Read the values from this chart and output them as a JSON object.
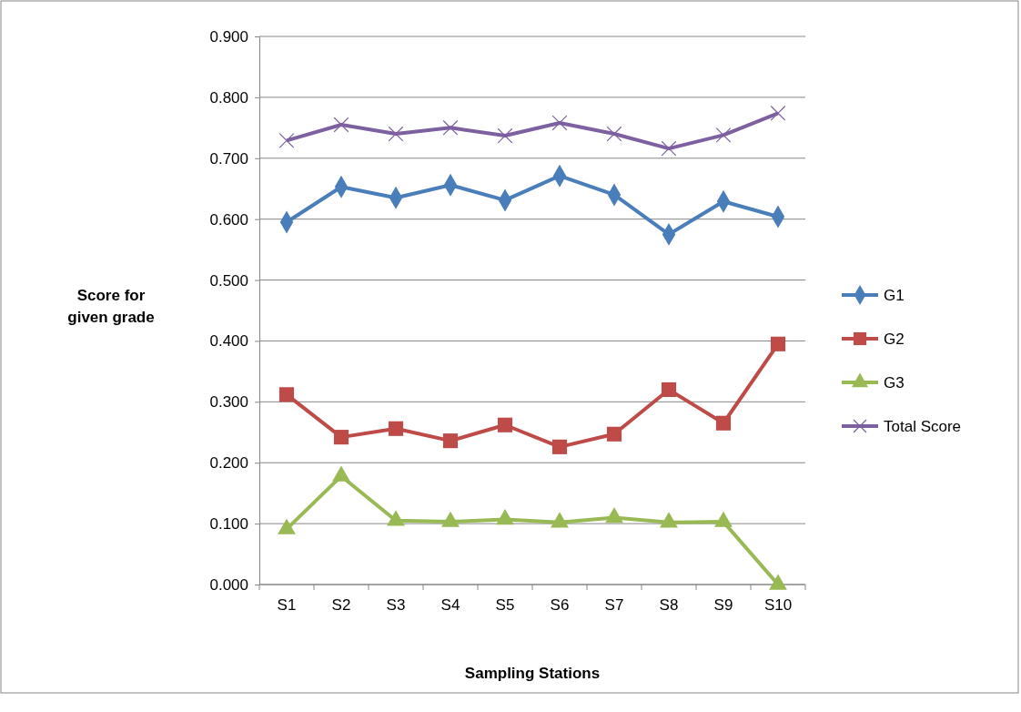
{
  "chart_data": {
    "type": "line",
    "xlabel": "Sampling Stations",
    "ylabel": "Score for given grade",
    "categories": [
      "S1",
      "S2",
      "S3",
      "S4",
      "S5",
      "S6",
      "S7",
      "S8",
      "S9",
      "S10"
    ],
    "series": [
      {
        "name": "G1",
        "color": "#4a7ebb",
        "marker": "diamond",
        "values": [
          0.595,
          0.653,
          0.635,
          0.656,
          0.631,
          0.671,
          0.64,
          0.575,
          0.629,
          0.604
        ]
      },
      {
        "name": "G2",
        "color": "#be4b48",
        "marker": "square",
        "values": [
          0.312,
          0.242,
          0.256,
          0.236,
          0.262,
          0.226,
          0.247,
          0.32,
          0.265,
          0.395
        ]
      },
      {
        "name": "G3",
        "color": "#98b954",
        "marker": "triangle",
        "values": [
          0.091,
          0.178,
          0.105,
          0.103,
          0.107,
          0.102,
          0.11,
          0.102,
          0.103,
          0.0
        ]
      },
      {
        "name": "Total Score",
        "color": "#7d60a0",
        "marker": "cross",
        "values": [
          0.729,
          0.755,
          0.74,
          0.75,
          0.737,
          0.758,
          0.74,
          0.716,
          0.738,
          0.774
        ]
      }
    ],
    "ylim": [
      0,
      0.9
    ],
    "yticks": [
      {
        "value": 0,
        "label": "0.000"
      },
      {
        "value": 0.1,
        "label": "0.100"
      },
      {
        "value": 0.2,
        "label": "0.200"
      },
      {
        "value": 0.3,
        "label": "0.300"
      },
      {
        "value": 0.4,
        "label": "0.400"
      },
      {
        "value": 0.5,
        "label": "0.500"
      },
      {
        "value": 0.6,
        "label": "0.600"
      },
      {
        "value": 0.7,
        "label": "0.700"
      },
      {
        "value": 0.8,
        "label": "0.800"
      },
      {
        "value": 0.9,
        "label": "0.900"
      }
    ],
    "grid": "y",
    "legend": "right",
    "line_style": "solid"
  }
}
